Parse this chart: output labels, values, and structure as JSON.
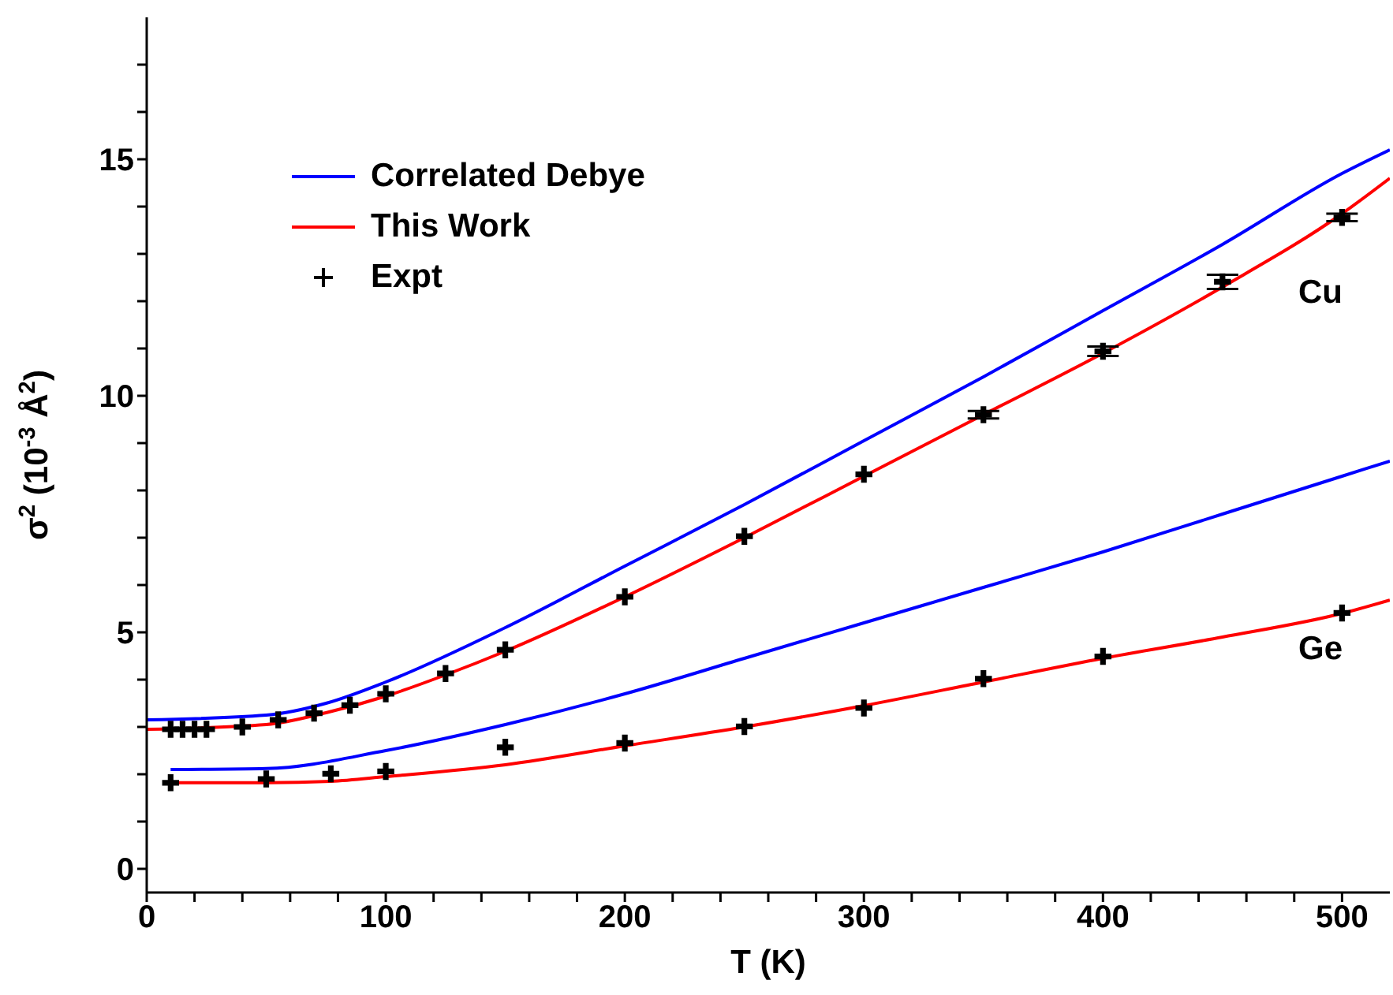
{
  "chart_data": {
    "type": "line",
    "xlabel": "T (K)",
    "ylabel": "σ$^{2}$ (10$^{-3}$ Å$^{2}$)",
    "xlim": [
      0,
      520
    ],
    "ylim": [
      -0.5,
      18
    ],
    "xticks": [
      0,
      {
        "value": 20,
        "label": null
      },
      {
        "value": 40,
        "label": null
      },
      {
        "value": 60,
        "label": null
      },
      {
        "value": 80,
        "label": null
      },
      100,
      {
        "value": 120,
        "label": null
      },
      {
        "value": 140,
        "label": null
      },
      {
        "value": 160,
        "label": null
      },
      {
        "value": 180,
        "label": null
      },
      200,
      {
        "value": 220,
        "label": null
      },
      {
        "value": 240,
        "label": null
      },
      {
        "value": 260,
        "label": null
      },
      {
        "value": 280,
        "label": null
      },
      300,
      {
        "value": 320,
        "label": null
      },
      {
        "value": 340,
        "label": null
      },
      {
        "value": 360,
        "label": null
      },
      {
        "value": 380,
        "label": null
      },
      400,
      {
        "value": 420,
        "label": null
      },
      {
        "value": 440,
        "label": null
      },
      {
        "value": 460,
        "label": null
      },
      {
        "value": 480,
        "label": null
      },
      500
    ],
    "yticks": [
      0,
      {
        "value": 1,
        "label": null
      },
      {
        "value": 2,
        "label": null
      },
      {
        "value": 3,
        "label": null
      },
      {
        "value": 4,
        "label": null
      },
      5,
      {
        "value": 6,
        "label": null
      },
      {
        "value": 7,
        "label": null
      },
      {
        "value": 8,
        "label": null
      },
      {
        "value": 9,
        "label": null
      },
      10,
      {
        "value": 11,
        "label": null
      },
      {
        "value": 12,
        "label": null
      },
      {
        "value": 13,
        "label": null
      },
      {
        "value": 14,
        "label": null
      },
      15,
      {
        "value": 16,
        "label": null
      },
      {
        "value": 17,
        "label": null
      }
    ],
    "grid": false,
    "legend": "top left",
    "series": [
      {
        "name": "Correlated Debye",
        "color": "#0000ff",
        "line_style": "solid",
        "marker": "none",
        "x": [
          0,
          50,
          75,
          100,
          150,
          200,
          250,
          300,
          350,
          400,
          450,
          500,
          520
        ],
        "values": [
          3.15,
          3.25,
          3.5,
          3.95,
          5.1,
          6.4,
          7.7,
          9.05,
          10.4,
          11.8,
          13.2,
          14.7,
          15.2
        ]
      },
      {
        "name": "This Work",
        "color": "#ff0000",
        "line_style": "solid",
        "marker": "none",
        "x": [
          0,
          50,
          75,
          100,
          125,
          150,
          200,
          250,
          300,
          350,
          400,
          450,
          500,
          520
        ],
        "values": [
          2.95,
          3.05,
          3.3,
          3.65,
          4.1,
          4.6,
          5.75,
          7.0,
          8.3,
          9.6,
          10.9,
          12.3,
          13.85,
          14.6
        ]
      },
      {
        "name": "Expt",
        "type": "scatter",
        "color": "#000000",
        "marker": "cross",
        "x": [
          10,
          15,
          20,
          25,
          40,
          55,
          70,
          85,
          100,
          125,
          150,
          200,
          250,
          300,
          350,
          400,
          450,
          500
        ],
        "values": [
          2.95,
          2.95,
          2.95,
          2.95,
          3.0,
          3.15,
          3.29,
          3.46,
          3.7,
          4.13,
          4.63,
          5.75,
          7.03,
          8.34,
          9.6,
          10.94,
          12.41,
          13.77
        ],
        "errors": [
          null,
          null,
          null,
          null,
          null,
          null,
          null,
          null,
          null,
          null,
          null,
          null,
          null,
          null,
          0.08,
          0.1,
          0.15,
          0.08
        ]
      },
      {
        "color": "#0000ff",
        "line_style": "solid",
        "marker": "none",
        "x": [
          10,
          50,
          100,
          150,
          200,
          250,
          300,
          350,
          400,
          450,
          500,
          520
        ],
        "values": [
          2.1,
          2.12,
          2.5,
          3.05,
          3.7,
          4.45,
          5.2,
          5.95,
          6.7,
          7.5,
          8.3,
          8.62
        ]
      },
      {
        "color": "#ff0000",
        "line_style": "solid",
        "marker": "none",
        "x": [
          10,
          50,
          77,
          100,
          150,
          200,
          250,
          300,
          350,
          400,
          450,
          500,
          520
        ],
        "values": [
          1.82,
          1.82,
          1.85,
          1.95,
          2.2,
          2.6,
          3.0,
          3.45,
          3.95,
          4.45,
          4.9,
          5.4,
          5.68
        ]
      },
      {
        "type": "scatter",
        "color": "#000000",
        "marker": "cross",
        "x": [
          10,
          50,
          77,
          100,
          150,
          200,
          250,
          300,
          350,
          400,
          500
        ],
        "values": [
          1.82,
          1.9,
          2.01,
          2.06,
          2.57,
          2.66,
          3.01,
          3.4,
          4.02,
          4.49,
          5.41
        ]
      }
    ],
    "annotations": [
      "Cu",
      "Ge"
    ]
  }
}
